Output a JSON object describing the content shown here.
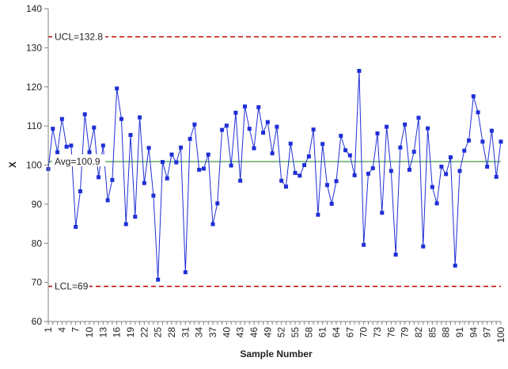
{
  "chart_data": {
    "type": "line",
    "xlabel": "Sample Number",
    "ylabel": "X",
    "xlim": [
      1,
      100
    ],
    "ylim": [
      60,
      140
    ],
    "yticks": [
      60,
      70,
      80,
      90,
      100,
      110,
      120,
      130,
      140
    ],
    "xticks": [
      1,
      4,
      7,
      10,
      13,
      16,
      19,
      22,
      25,
      28,
      31,
      34,
      37,
      40,
      43,
      46,
      49,
      52,
      55,
      58,
      61,
      64,
      67,
      70,
      73,
      76,
      79,
      82,
      85,
      88,
      91,
      94,
      97,
      100
    ],
    "grid": false,
    "reference_lines": [
      {
        "label": "UCL=132.8",
        "value": 132.8,
        "color": "#c00000",
        "style": "dashed"
      },
      {
        "label": "Avg=100.9",
        "value": 100.9,
        "color": "#2e8b2e",
        "style": "solid"
      },
      {
        "label": "LCL=69",
        "value": 69,
        "color": "#c00000",
        "style": "dashed"
      }
    ],
    "series": [
      {
        "color": "#1f2fd6",
        "marker": "square",
        "x": [
          1,
          2,
          3,
          4,
          5,
          6,
          7,
          8,
          9,
          10,
          11,
          12,
          13,
          14,
          15,
          16,
          17,
          18,
          19,
          20,
          21,
          22,
          23,
          24,
          25,
          26,
          27,
          28,
          29,
          30,
          31,
          32,
          33,
          34,
          35,
          36,
          37,
          38,
          39,
          40,
          41,
          42,
          43,
          44,
          45,
          46,
          47,
          48,
          49,
          50,
          51,
          52,
          53,
          54,
          55,
          56,
          57,
          58,
          59,
          60,
          61,
          62,
          63,
          64,
          65,
          66,
          67,
          68,
          69,
          70,
          71,
          72,
          73,
          74,
          75,
          76,
          77,
          78,
          79,
          80,
          81,
          82,
          83,
          84,
          85,
          86,
          87,
          88,
          89,
          90,
          91,
          92,
          93,
          94,
          95,
          96,
          97,
          98,
          99,
          100
        ],
        "values": [
          99,
          109.3,
          103.3,
          111.8,
          104.7,
          105,
          84.2,
          93.3,
          113,
          103.3,
          109.6,
          96.9,
          105,
          91,
          96.2,
          119.6,
          111.8,
          84.9,
          107.7,
          86.8,
          112.2,
          95.4,
          104.4,
          92.2,
          70.7,
          100.8,
          96.6,
          102.7,
          100.7,
          104.5,
          72.6,
          106.7,
          110.4,
          98.8,
          99.1,
          102.7,
          84.9,
          90.2,
          109,
          110.1,
          99.9,
          113.4,
          96,
          115,
          109.3,
          104.3,
          114.8,
          108.3,
          111,
          103,
          109.8,
          96,
          94.5,
          105.5,
          98,
          97.3,
          100,
          102.2,
          109.1,
          87.3,
          105.4,
          94.9,
          90.1,
          95.9,
          107.5,
          103.8,
          102.5,
          97.4,
          124.1,
          79.6,
          97.8,
          99.2,
          108.1,
          87.8,
          109.8,
          98.5,
          77.1,
          104.5,
          110.4,
          98.8,
          103.4,
          112.1,
          79.2,
          109.4,
          94.4,
          90.2,
          99.6,
          97.7,
          102,
          74.3,
          98.5,
          103.7,
          106.3,
          117.6,
          113.5,
          106,
          99.6,
          108.8,
          97,
          106
        ]
      }
    ]
  }
}
